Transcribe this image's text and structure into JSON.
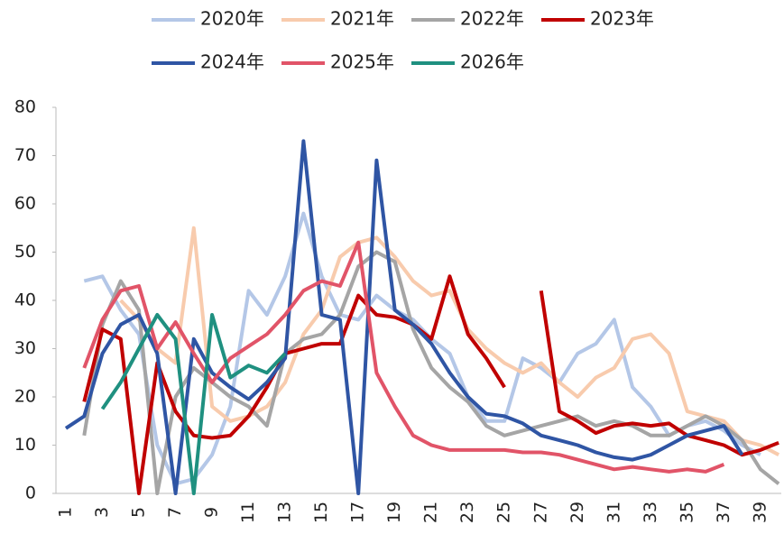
{
  "chart_data": {
    "type": "line",
    "categories": [
      1,
      null,
      3,
      null,
      5,
      null,
      7,
      null,
      9,
      null,
      11,
      null,
      13,
      null,
      15,
      null,
      17,
      null,
      19,
      null,
      21,
      null,
      23,
      null,
      25,
      null,
      27,
      null,
      29,
      null,
      31,
      null,
      33,
      null,
      35,
      null,
      37,
      null,
      39,
      null
    ],
    "ylim": [
      0,
      80
    ],
    "yticks": [
      0,
      10,
      20,
      30,
      40,
      50,
      60,
      70,
      80
    ],
    "grid": false,
    "series": [
      {
        "name": "2020年",
        "color": "#b4c7e7",
        "values": [
          null,
          44,
          45,
          38,
          33,
          10,
          2,
          3,
          8,
          18,
          42,
          37,
          45,
          58,
          45,
          37,
          36,
          41,
          38,
          36,
          32,
          29,
          20,
          15,
          15,
          28,
          26,
          23,
          29,
          31,
          36,
          22,
          18,
          12,
          14,
          15,
          13,
          10,
          8,
          null
        ]
      },
      {
        "name": "2021年",
        "color": "#f8cbad",
        "values": [
          null,
          null,
          null,
          40,
          36,
          30,
          27,
          55,
          18,
          15,
          16,
          18,
          23,
          33,
          38,
          49,
          52,
          53,
          49,
          44,
          41,
          42,
          34,
          30,
          27,
          25,
          27,
          23,
          20,
          24,
          26,
          32,
          33,
          29,
          17,
          16,
          15,
          11,
          10,
          8
        ]
      },
      {
        "name": "2022年",
        "color": "#a5a5a5",
        "values": [
          null,
          12,
          35,
          44,
          38,
          0,
          20,
          26,
          23,
          20,
          18,
          14,
          29,
          32,
          33,
          37,
          47,
          50,
          48,
          34,
          26,
          22,
          19,
          14,
          12,
          13,
          14,
          15,
          16,
          14,
          15,
          14,
          12,
          12,
          14,
          16,
          14,
          11,
          5,
          2
        ]
      },
      {
        "name": "2023年",
        "color": "#c00000",
        "values": [
          null,
          19,
          34,
          32,
          0,
          27,
          17,
          12,
          11.5,
          12,
          16,
          22,
          29,
          30,
          31,
          31,
          41,
          37,
          36.5,
          35,
          32,
          45,
          33,
          28,
          22,
          null,
          42,
          17,
          15,
          12.5,
          14,
          14.5,
          14,
          14.5,
          12,
          11,
          10,
          8,
          9,
          10.5
        ]
      },
      {
        "name": "2024年",
        "color": "#2f55a4",
        "values": [
          13.5,
          16,
          29,
          35,
          37,
          29,
          0,
          32,
          25,
          22,
          19.5,
          23,
          28,
          73,
          37,
          36,
          0,
          69,
          38,
          35,
          31,
          25,
          20,
          16.5,
          16,
          14.5,
          12,
          11,
          10,
          8.5,
          7.5,
          7,
          8,
          10,
          12,
          13,
          14,
          8,
          null,
          null
        ]
      },
      {
        "name": "2025年",
        "color": "#e15468",
        "values": [
          null,
          26,
          36,
          42,
          43,
          30,
          35.5,
          29,
          23,
          28,
          30.5,
          33,
          37,
          42,
          44,
          43,
          52,
          25,
          18,
          12,
          10,
          9,
          9,
          9,
          9,
          8.5,
          8.5,
          8,
          7,
          6,
          5,
          5.5,
          5,
          4.5,
          5,
          4.5,
          6,
          null,
          null,
          null
        ]
      },
      {
        "name": "2026年",
        "color": "#1f9080",
        "values": [
          null,
          null,
          17.5,
          23,
          30,
          37,
          32,
          0,
          37,
          24,
          26.5,
          25,
          29,
          null,
          null,
          null,
          null,
          null,
          null,
          null,
          null,
          null,
          null,
          null,
          null,
          null,
          null,
          null,
          null,
          null,
          null,
          null,
          null,
          null,
          null,
          null,
          null,
          null,
          null,
          null
        ]
      }
    ]
  }
}
